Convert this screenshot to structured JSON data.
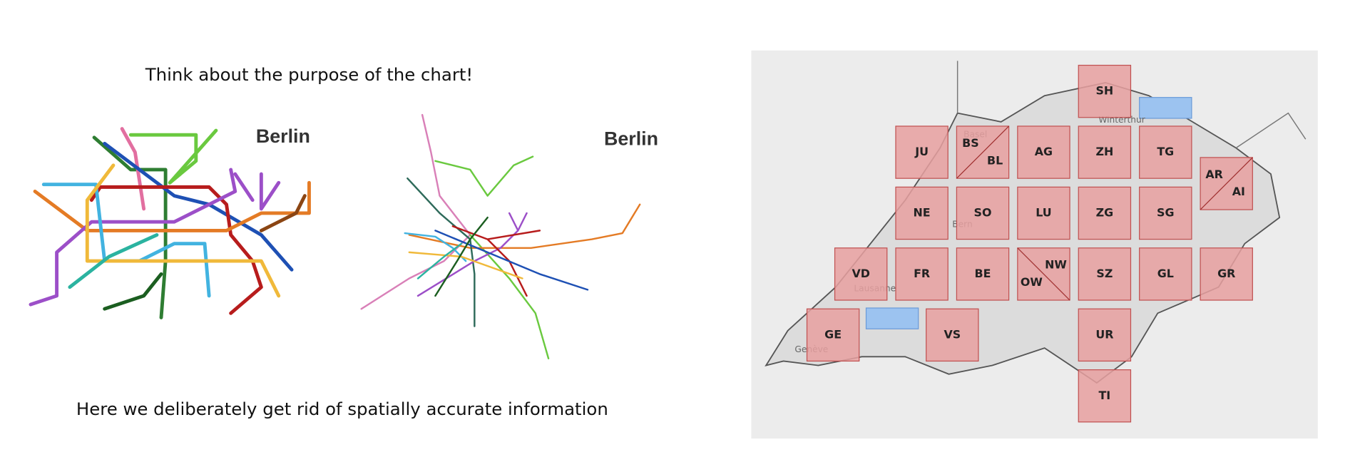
{
  "slide": {
    "top_text": "Think about the purpose of the chart!",
    "bottom_text": "Here we deliberately get rid of spatially accurate information"
  },
  "metro_maps": {
    "schematic_label": "Berlin",
    "geographic_label": "Berlin"
  },
  "tile_map": {
    "tiles": [
      "SH",
      "JU",
      "AG",
      "ZH",
      "TG",
      "NE",
      "SO",
      "LU",
      "ZG",
      "SG",
      "VD",
      "FR",
      "BE",
      "SZ",
      "GL",
      "GR",
      "GE",
      "VS",
      "UR",
      "TI"
    ],
    "split_tiles": [
      [
        "BS",
        "BL"
      ],
      [
        "AR",
        "AI"
      ],
      [
        "NW",
        "OW"
      ]
    ],
    "place_names": [
      "Basel",
      "Winterthur",
      "Bern",
      "Lausanne",
      "Genève"
    ]
  }
}
